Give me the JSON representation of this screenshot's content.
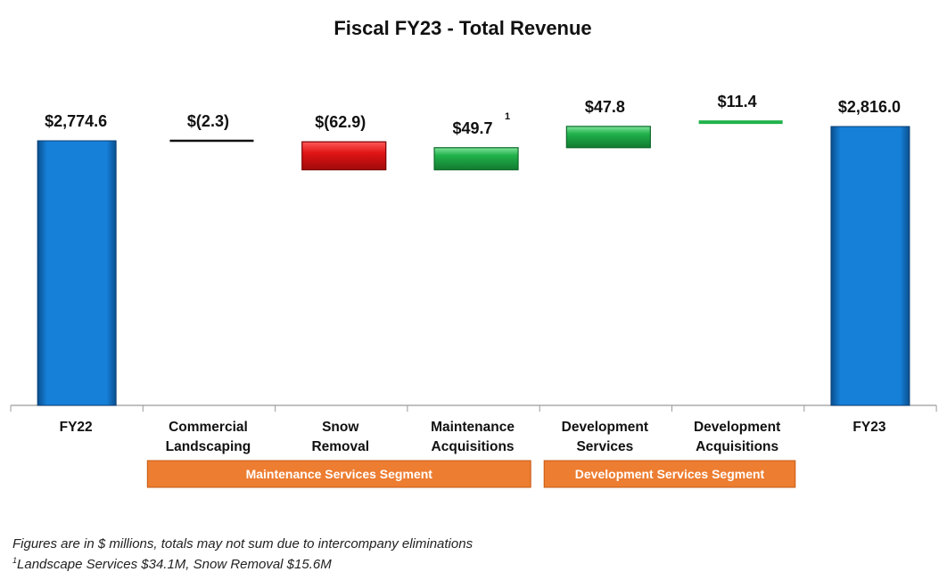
{
  "chart_data": {
    "type": "waterfall",
    "title": "Fiscal FY23 - Total Revenue",
    "categories": [
      "FY22",
      "Commercial Landscaping",
      "Snow Removal",
      "Maintenance Acquisitions",
      "Development Services",
      "Development Acquisitions",
      "FY23"
    ],
    "category_lines": [
      [
        "FY22"
      ],
      [
        "Commercial",
        "Landscaping"
      ],
      [
        "Snow",
        "Removal"
      ],
      [
        "Maintenance",
        "Acquisitions"
      ],
      [
        "Development",
        "Services"
      ],
      [
        "Development",
        "Acquisitions"
      ],
      [
        "FY23"
      ]
    ],
    "values": [
      2774.6,
      -2.3,
      -62.9,
      49.7,
      47.8,
      11.4,
      2816.0
    ],
    "kinds": [
      "total",
      "delta",
      "delta",
      "delta",
      "delta",
      "delta",
      "total"
    ],
    "labels": [
      "$2,774.6",
      "$(2.3)",
      "$(62.9)",
      "$49.7",
      "$47.8",
      "$11.4",
      "$2,816.0"
    ],
    "label_superscripts": [
      "",
      "",
      "",
      "1",
      "",
      "",
      ""
    ],
    "ylim": [
      0,
      2816.0
    ],
    "grid": false,
    "colors": {
      "total": "#0a72c8",
      "increase": "#21b24b",
      "decrease": "#e01414",
      "neutral": "#111111"
    },
    "segments": [
      {
        "label": "Maintenance Services Segment",
        "from": 1,
        "to": 3,
        "color": "#ed7d31"
      },
      {
        "label": "Development Services Segment",
        "from": 4,
        "to": 5,
        "color": "#ed7d31"
      }
    ]
  },
  "footnotes": {
    "line1": "Figures are in $ millions, totals may not sum due to intercompany eliminations",
    "line2_mark": "1",
    "line2_text": "Landscape Services $34.1M, Snow Removal $15.6M"
  }
}
